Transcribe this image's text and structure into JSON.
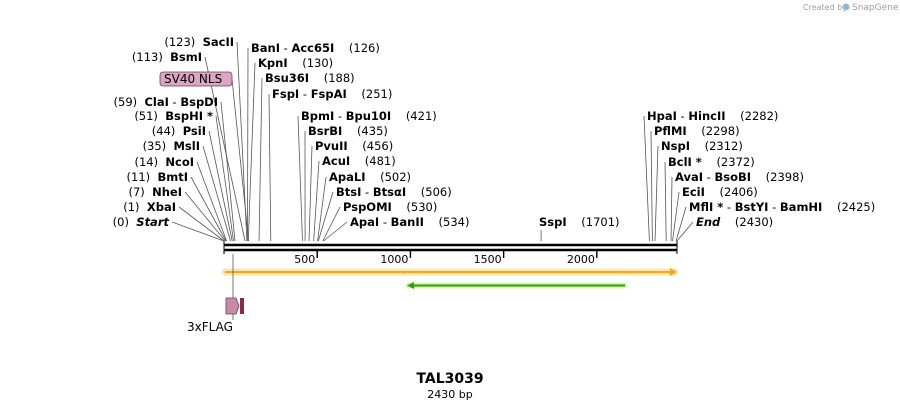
{
  "credit": {
    "created_by": "Created by",
    "brand": "SnapGene"
  },
  "plasmid": {
    "name": "TAL3039",
    "size_label": "2430 bp",
    "length": 2430
  },
  "ruler": {
    "ticks": [
      500,
      1000,
      1500,
      2000
    ]
  },
  "sites_left": [
    {
      "pos": "(123)",
      "names": [
        "SacII"
      ],
      "bp": 123
    },
    {
      "pos": "(113)",
      "names": [
        "BsmI"
      ],
      "bp": 113
    },
    {
      "feature": "SV40 NLS",
      "bp": 100
    },
    {
      "pos": "(59)",
      "names": [
        "ClaI",
        "BspDI"
      ],
      "bp": 59
    },
    {
      "pos": "(51)",
      "names": [
        "BspHI *"
      ],
      "bp": 51
    },
    {
      "pos": "(44)",
      "names": [
        "PsiI"
      ],
      "bp": 44
    },
    {
      "pos": "(35)",
      "names": [
        "MslI"
      ],
      "bp": 35
    },
    {
      "pos": "(14)",
      "names": [
        "NcoI"
      ],
      "bp": 14
    },
    {
      "pos": "(11)",
      "names": [
        "BmtI"
      ],
      "bp": 11
    },
    {
      "pos": "(7)",
      "names": [
        "NheI"
      ],
      "bp": 7
    },
    {
      "pos": "(1)",
      "names": [
        "XbaI"
      ],
      "bp": 1
    },
    {
      "pos": "(0)",
      "names": [
        "Start"
      ],
      "bp": 0,
      "italic": true
    }
  ],
  "sites_mid_left": [
    {
      "names": [
        "BanI",
        "Acc65I"
      ],
      "pos": "(126)",
      "bp": 126
    },
    {
      "names": [
        "KpnI"
      ],
      "pos": "(130)",
      "bp": 130
    },
    {
      "names": [
        "Bsu36I"
      ],
      "pos": "(188)",
      "bp": 188
    },
    {
      "names": [
        "FspI",
        "FspAI"
      ],
      "pos": "(251)",
      "bp": 251
    }
  ],
  "sites_mid": [
    {
      "names": [
        "BpmI",
        "Bpu10I"
      ],
      "pos": "(421)",
      "bp": 421
    },
    {
      "names": [
        "BsrBI"
      ],
      "pos": "(435)",
      "bp": 435
    },
    {
      "names": [
        "PvuII"
      ],
      "pos": "(456)",
      "bp": 456
    },
    {
      "names": [
        "AcuI"
      ],
      "pos": "(481)",
      "bp": 481
    },
    {
      "names": [
        "ApaLI"
      ],
      "pos": "(502)",
      "bp": 502
    },
    {
      "names": [
        "BtsI",
        "BtsαI"
      ],
      "pos": "(506)",
      "bp": 506
    },
    {
      "names": [
        "PspOMI"
      ],
      "pos": "(530)",
      "bp": 530
    },
    {
      "names": [
        "ApaI",
        "BanII"
      ],
      "pos": "(534)",
      "bp": 534
    }
  ],
  "site_sspi": {
    "names": [
      "SspI"
    ],
    "pos": "(1701)",
    "bp": 1701
  },
  "sites_right": [
    {
      "names": [
        "HpaI",
        "HincII"
      ],
      "pos": "(2282)",
      "bp": 2282
    },
    {
      "names": [
        "PflMI"
      ],
      "pos": "(2298)",
      "bp": 2298
    },
    {
      "names": [
        "NspI"
      ],
      "pos": "(2312)",
      "bp": 2312
    },
    {
      "names": [
        "BclI *"
      ],
      "pos": "(2372)",
      "bp": 2372
    },
    {
      "names": [
        "AvaI",
        "BsoBI"
      ],
      "pos": "(2398)",
      "bp": 2398
    },
    {
      "names": [
        "EciI"
      ],
      "pos": "(2406)",
      "bp": 2406
    },
    {
      "names": [
        "MflI *",
        "BstYI",
        "BamHI"
      ],
      "pos": "(2425)",
      "bp": 2425
    },
    {
      "names": [
        "End"
      ],
      "pos": "(2430)",
      "bp": 2430,
      "italic": true
    }
  ],
  "features": {
    "flag_label": "3xFLAG",
    "orf_color": "#f5a623",
    "orf_glow": "#fde7a8",
    "green_color": "#2e9e1a",
    "green_glow": "#d7f5a6",
    "nls_fill": "#dba6c4",
    "flag_fill": "#c98aa8"
  }
}
